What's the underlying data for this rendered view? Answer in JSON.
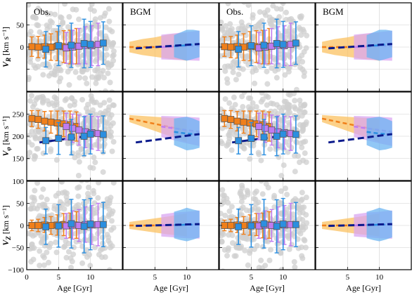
{
  "chart_data": {
    "type": "scatter",
    "columns": [
      {
        "title": "Obs.",
        "kind": "obs"
      },
      {
        "title": "BGM",
        "kind": "bgm"
      },
      {
        "title": "Obs.",
        "kind": "obs"
      },
      {
        "title": "BGM",
        "kind": "bgm"
      }
    ],
    "rows": [
      {
        "ylabel": "V_R [km s⁻¹]",
        "ylabel_main": "V",
        "ylabel_sub": "R",
        "ylabel_unit": " [km s⁻¹]",
        "ylim": [
          -100,
          100
        ],
        "yticks": [
          -50,
          0,
          50
        ],
        "ytick_labels": [
          "",
          "0",
          "50"
        ]
      },
      {
        "ylabel": "V_φ [km s⁻¹]",
        "ylabel_main": "V",
        "ylabel_sub": "φ",
        "ylabel_unit": " [km s⁻¹]",
        "ylim": [
          100,
          300
        ],
        "yticks": [
          150,
          200,
          250
        ],
        "ytick_labels": [
          "150",
          "200",
          "250"
        ]
      },
      {
        "ylabel": "V_Z [km s⁻¹]",
        "ylabel_main": "V",
        "ylabel_sub": "Z",
        "ylabel_unit": " [km s⁻¹]",
        "ylim": [
          -100,
          100
        ],
        "yticks": [
          -100,
          -50,
          0,
          50,
          100
        ],
        "ytick_labels": [
          "−100",
          "−50",
          "0",
          "50",
          "100"
        ]
      }
    ],
    "xlabel": "Age [Gyr]",
    "xlim": [
      0,
      15
    ],
    "xticks": [
      0,
      5,
      10
    ],
    "grid": true,
    "colors": {
      "orange": "#f07f1a",
      "violet": "#c07cf0",
      "blue": "#2b8fe0",
      "navy": "#0a1a8c",
      "band_orange": "#fbc262",
      "band_violet": "#d9a6f2",
      "band_blue": "#6cb4f2",
      "scatter": "#cfcfcf"
    },
    "series": {
      "obs_orange_squares": {
        "x": [
          0.8,
          1.8,
          2.8,
          3.8,
          4.8,
          5.8,
          6.8,
          7.8
        ],
        "VR": [
          1,
          0,
          1,
          0,
          2,
          1,
          0,
          2
        ],
        "VR_err": [
          22,
          24,
          26,
          30,
          33,
          36,
          38,
          40
        ],
        "Vphi": [
          240,
          238,
          234,
          232,
          230,
          228,
          226,
          222
        ],
        "Vphi_err": [
          18,
          20,
          22,
          25,
          27,
          29,
          31,
          33
        ],
        "VZ": [
          0,
          0,
          1,
          0,
          1,
          2,
          0,
          1
        ],
        "VZ_err": [
          12,
          14,
          17,
          20,
          23,
          25,
          28,
          30
        ]
      },
      "obs_violet_squares": {
        "x": [
          6.2,
          7.2,
          8.2,
          9.2,
          10.2,
          11.2
        ],
        "VR": [
          -2,
          0,
          2,
          4,
          3,
          6
        ],
        "VR_err": [
          35,
          38,
          40,
          42,
          45,
          48
        ],
        "Vphi": [
          222,
          218,
          214,
          210,
          208,
          206
        ],
        "Vphi_err": [
          30,
          32,
          34,
          36,
          37,
          38
        ],
        "VZ": [
          -1,
          1,
          0,
          2,
          1,
          2
        ],
        "VZ_err": [
          28,
          32,
          36,
          40,
          44,
          48
        ]
      },
      "obs_blue_squares": {
        "x": [
          3.0,
          5.0,
          7.0,
          9.0,
          10.0,
          12.0
        ],
        "VR": [
          -5,
          3,
          4,
          8,
          6,
          9
        ],
        "VR_err": [
          40,
          45,
          50,
          55,
          52,
          48
        ],
        "Vphi": [
          190,
          195,
          198,
          200,
          205,
          204
        ],
        "Vphi_err": [
          30,
          36,
          40,
          44,
          45,
          42
        ],
        "VZ": [
          -3,
          -1,
          4,
          -2,
          3,
          2
        ],
        "VZ_err": [
          40,
          48,
          55,
          60,
          58,
          50
        ]
      },
      "navy_trend": {
        "x": [
          2,
          12
        ],
        "VR": [
          -3,
          7
        ],
        "Vphi": [
          186,
          205
        ],
        "VZ": [
          -1,
          3
        ]
      },
      "bgm_orange_band": {
        "x": [
          1,
          3,
          5,
          7,
          9,
          10
        ],
        "VR_mid": [
          0,
          0,
          0,
          1,
          1,
          1
        ],
        "VR_half": [
          12,
          18,
          22,
          27,
          30,
          32
        ],
        "Vphi_mid": [
          240,
          234,
          228,
          222,
          216,
          212
        ],
        "Vphi_half": [
          8,
          12,
          16,
          20,
          24,
          26
        ],
        "VZ_mid": [
          0,
          0,
          0,
          0,
          1,
          1
        ],
        "VZ_half": [
          8,
          12,
          16,
          20,
          24,
          26
        ]
      },
      "bgm_violet_band": {
        "x": [
          6,
          8,
          10,
          12
        ],
        "VR_mid": [
          0,
          1,
          2,
          3
        ],
        "VR_half": [
          28,
          30,
          32,
          34
        ],
        "Vphi_mid": [
          222,
          218,
          214,
          210
        ],
        "Vphi_half": [
          24,
          27,
          30,
          32
        ],
        "VZ_mid": [
          0,
          1,
          1,
          2
        ],
        "VZ_half": [
          25,
          28,
          30,
          32
        ]
      },
      "bgm_blue_band": {
        "x": [
          8,
          9,
          10,
          11,
          12
        ],
        "VR_mid": [
          2,
          3,
          4,
          6,
          7
        ],
        "VR_half": [
          25,
          30,
          35,
          33,
          30
        ],
        "Vphi_mid": [
          210,
          208,
          206,
          205,
          204
        ],
        "Vphi_half": [
          30,
          34,
          38,
          35,
          30
        ],
        "VZ_mid": [
          1,
          1,
          2,
          2,
          3
        ],
        "VZ_half": [
          30,
          34,
          38,
          34,
          30
        ]
      }
    }
  }
}
